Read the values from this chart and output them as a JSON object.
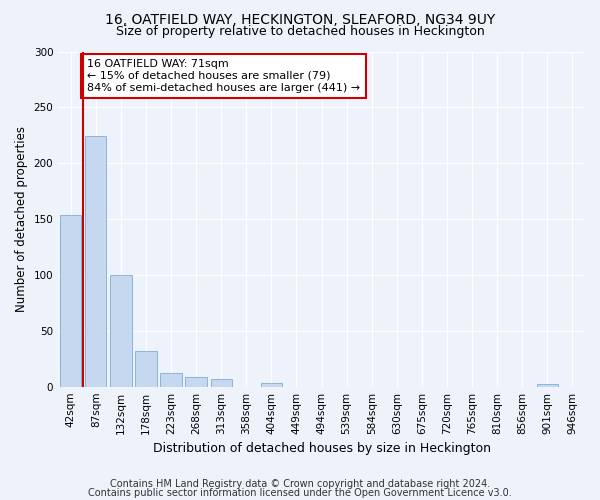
{
  "title": "16, OATFIELD WAY, HECKINGTON, SLEAFORD, NG34 9UY",
  "subtitle": "Size of property relative to detached houses in Heckington",
  "xlabel": "Distribution of detached houses by size in Heckington",
  "ylabel": "Number of detached properties",
  "bar_labels": [
    "42sqm",
    "87sqm",
    "132sqm",
    "178sqm",
    "223sqm",
    "268sqm",
    "313sqm",
    "358sqm",
    "404sqm",
    "449sqm",
    "494sqm",
    "539sqm",
    "584sqm",
    "630sqm",
    "675sqm",
    "720sqm",
    "765sqm",
    "810sqm",
    "856sqm",
    "901sqm",
    "946sqm"
  ],
  "bar_values": [
    154,
    224,
    100,
    32,
    12,
    9,
    7,
    0,
    3,
    0,
    0,
    0,
    0,
    0,
    0,
    0,
    0,
    0,
    0,
    2,
    0
  ],
  "bar_color": "#c5d8f0",
  "bar_edge_color": "#7aafd4",
  "vline_index": 0.5,
  "vline_color": "#cc0000",
  "annotation_text": "16 OATFIELD WAY: 71sqm\n← 15% of detached houses are smaller (79)\n84% of semi-detached houses are larger (441) →",
  "annotation_box_color": "#ffffff",
  "annotation_box_edge": "#cc0000",
  "ylim": [
    0,
    300
  ],
  "yticks": [
    0,
    50,
    100,
    150,
    200,
    250,
    300
  ],
  "footer_line1": "Contains HM Land Registry data © Crown copyright and database right 2024.",
  "footer_line2": "Contains public sector information licensed under the Open Government Licence v3.0.",
  "bg_color": "#eef2fb",
  "plot_bg_color": "#eef2fb",
  "title_fontsize": 10,
  "subtitle_fontsize": 9,
  "axis_label_fontsize": 8.5,
  "tick_fontsize": 7.5,
  "annotation_fontsize": 8,
  "footer_fontsize": 7
}
